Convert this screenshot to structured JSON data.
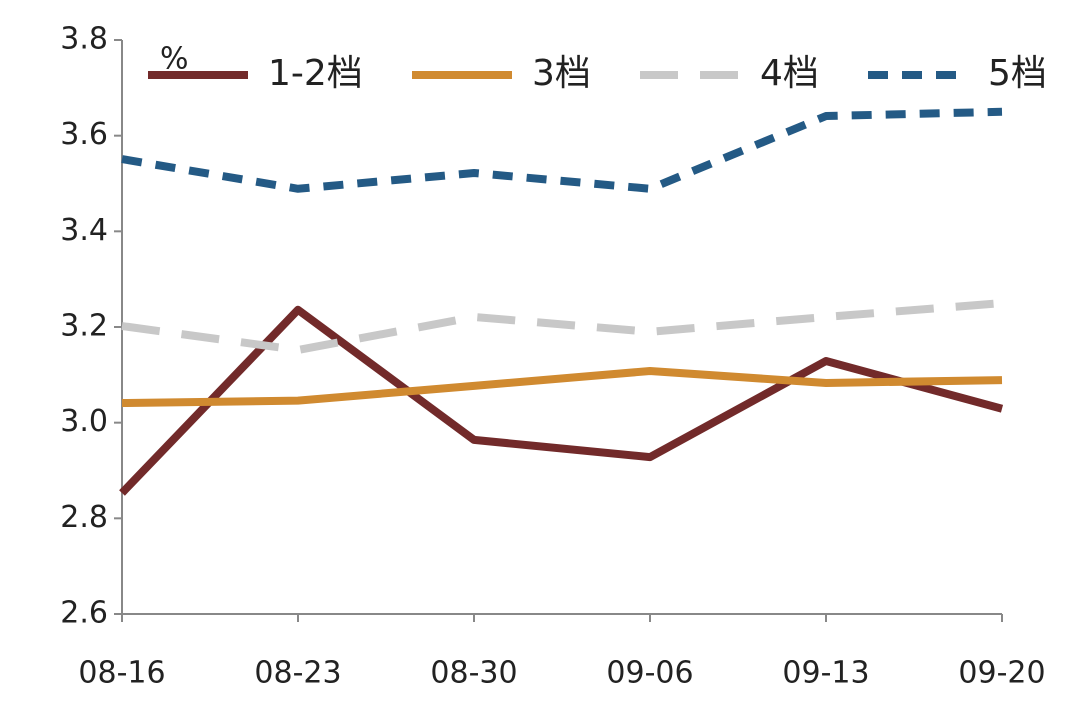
{
  "chart_data": {
    "type": "line",
    "unit": "%",
    "categories": [
      "08-16",
      "08-23",
      "08-30",
      "09-06",
      "09-13",
      "09-20"
    ],
    "series": [
      {
        "name": "1-2档",
        "color": "#722a2a",
        "line_style": "solid",
        "values": [
          2.853,
          3.236,
          2.964,
          2.928,
          3.129,
          3.029
        ]
      },
      {
        "name": "3档",
        "color": "#d08a30",
        "line_style": "solid",
        "values": [
          3.041,
          3.046,
          3.077,
          3.108,
          3.083,
          3.089
        ]
      },
      {
        "name": "4档",
        "color": "#c8c8c8",
        "line_style": "long-dash",
        "values": [
          3.202,
          3.152,
          3.221,
          3.19,
          3.221,
          3.25
        ]
      },
      {
        "name": "5档",
        "color": "#245a85",
        "line_style": "short-dash",
        "values": [
          3.551,
          3.489,
          3.522,
          3.489,
          3.641,
          3.65
        ]
      }
    ],
    "ylim": [
      2.6,
      3.8
    ],
    "yticks": [
      2.6,
      2.8,
      {
        "value": 3,
        "label": "3.0"
      },
      3.2,
      3.4,
      3.6,
      3.8
    ],
    "grid": false,
    "legend": "top"
  }
}
